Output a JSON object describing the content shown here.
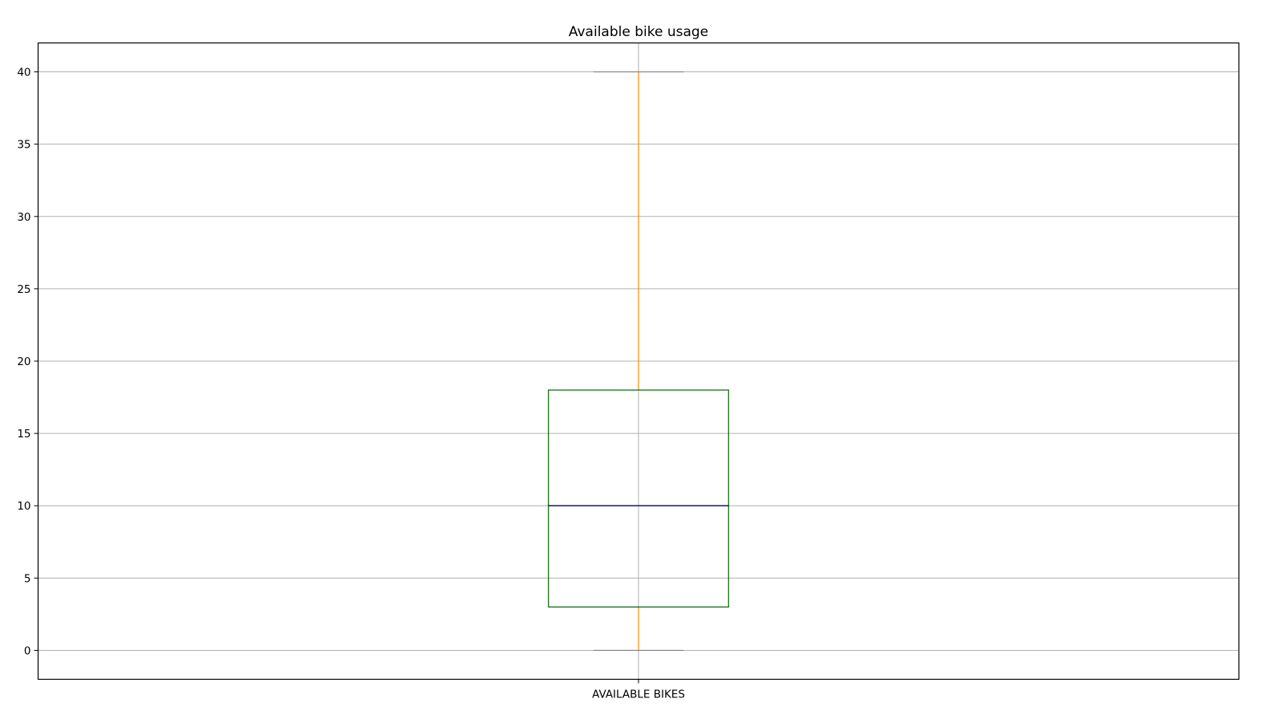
{
  "chart_data": {
    "type": "boxplot",
    "title": "Available bike usage",
    "xlabel": "",
    "ylabel": "",
    "categories": [
      "AVAILABLE BIKES"
    ],
    "boxes": [
      {
        "label": "AVAILABLE BIKES",
        "whisker_low": 0,
        "q1": 3,
        "median": 10,
        "q3": 18,
        "whisker_high": 40
      }
    ],
    "ylim": [
      -2,
      42
    ],
    "yticks": [
      0,
      5,
      10,
      15,
      20,
      25,
      30,
      35,
      40
    ],
    "ytick_labels": [
      "0",
      "5",
      "10",
      "15",
      "20",
      "25",
      "30",
      "35",
      "40"
    ],
    "grid": true,
    "colors": {
      "box": "#006400",
      "median": "#00008b",
      "whisker": "#ff8c00",
      "cap": "#808080",
      "grid": "#b0b0b0",
      "frame": "#000000"
    }
  }
}
